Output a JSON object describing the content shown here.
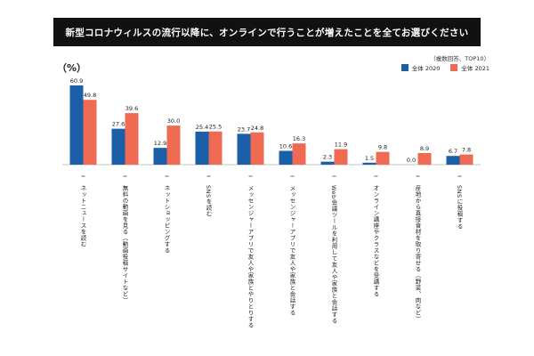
{
  "header": {
    "title": "新型コロナウィルスの流行以降に、オンラインで行うことが増えたことを全てお選びください"
  },
  "note": "（複数回答、TOP10）",
  "unit": "（%）",
  "colors": {
    "2020": "#1a5fa8",
    "2021": "#ee6a52",
    "title_bg": "#111111"
  },
  "chart_data": {
    "type": "bar",
    "categories": [
      "ネットニュースを読む",
      "無料の動画を見る（動画投稿サイトなど）",
      "ネットショッピングする",
      "SNSを読む",
      "メッセンジャーアプリで友人や家族とやりとりする",
      "メッセンジャーアプリで友人や家族と会話する",
      "Web会議ツールを利用して友人や家族と会話する",
      "オンライン講座やクラスなどを受講する",
      "産地から直接食材を取り寄せる（野菜、肉など）",
      "SNSに投稿する"
    ],
    "series": [
      {
        "name": "全体 2020",
        "values": [
          60.9,
          27.6,
          12.9,
          25.4,
          23.7,
          10.6,
          2.3,
          1.5,
          0.0,
          6.7
        ]
      },
      {
        "name": "全体 2021",
        "values": [
          49.8,
          39.6,
          30.0,
          25.5,
          24.8,
          16.3,
          11.9,
          9.8,
          8.9,
          7.8
        ]
      }
    ],
    "value_labels": [
      [
        "60.9",
        "27.6",
        "12.9",
        "25.4",
        "23.7",
        "10.6",
        "2.3",
        "1.5",
        "0.0",
        "6.7"
      ],
      [
        "49.8",
        "39.6",
        "30.0",
        "25.5",
        "24.8",
        "16.3",
        "11.9",
        "9.8",
        "8.9",
        "7.8"
      ]
    ],
    "ylim": [
      0,
      65
    ],
    "grid": false,
    "legend": "top-right"
  }
}
